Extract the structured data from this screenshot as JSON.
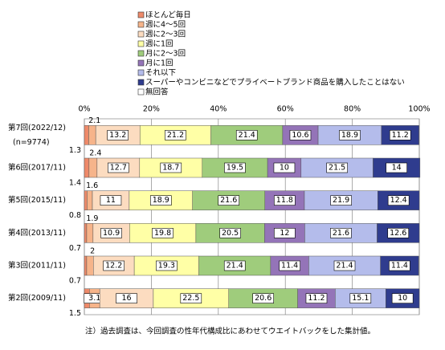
{
  "chart_data": {
    "type": "stacked-bar-horizontal",
    "categories": [
      "第7回(2022/12)",
      "第6回(2017/11)",
      "第5回(2015/11)",
      "第4回(2013/11)",
      "第3回(2011/11)",
      "第2回(2009/11)"
    ],
    "sample_size": "(n=9774)",
    "xlim": [
      0,
      100
    ],
    "xticks": [
      {
        "value": 0,
        "label": "0%"
      },
      {
        "value": 20,
        "label": "20%"
      },
      {
        "value": 40,
        "label": "40%"
      },
      {
        "value": 60,
        "label": "60%"
      },
      {
        "value": 80,
        "label": "80%"
      },
      {
        "value": 100,
        "label": "100%"
      }
    ],
    "grid": true,
    "series": [
      {
        "name": "ほとんど毎日",
        "color": "#ee8a6a",
        "values": [
          1.3,
          1.4,
          0.8,
          0.7,
          0.7,
          1.5
        ]
      },
      {
        "name": "週に4～5回",
        "color": "#f6b48a",
        "values": [
          2.1,
          2.4,
          1.6,
          1.9,
          2.0,
          3.1
        ]
      },
      {
        "name": "週に2～3回",
        "color": "#fcdcc0",
        "values": [
          13.2,
          12.7,
          11.0,
          10.9,
          12.2,
          16.0
        ]
      },
      {
        "name": "週に1回",
        "color": "#ffffa6",
        "values": [
          21.2,
          18.7,
          18.9,
          19.8,
          19.3,
          22.5
        ]
      },
      {
        "name": "月に2～3回",
        "color": "#9fcc7c",
        "values": [
          21.4,
          19.5,
          21.6,
          20.5,
          21.4,
          20.6
        ]
      },
      {
        "name": "月に1回",
        "color": "#9474b8",
        "values": [
          10.6,
          10.0,
          11.8,
          12.0,
          11.4,
          11.2
        ]
      },
      {
        "name": "それ以下",
        "color": "#b4bceb",
        "values": [
          18.9,
          21.5,
          21.9,
          21.6,
          21.4,
          15.1
        ]
      },
      {
        "name": "スーパーやコンビニなどでプライベートブランド商品を購入したことはない",
        "color": "#2f3c8e",
        "values": [
          11.2,
          14.0,
          12.4,
          12.6,
          11.4,
          10.0
        ]
      },
      {
        "name": "無回答",
        "color": "#ffffff",
        "values": [
          null,
          null,
          null,
          null,
          null,
          null
        ]
      }
    ],
    "note": "注）過去調査は、今回調査の性年代構成比にあわせてウエイトバックをした集計値。"
  }
}
